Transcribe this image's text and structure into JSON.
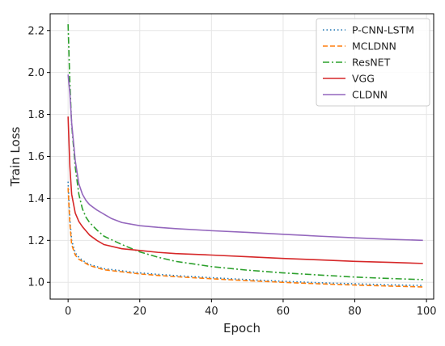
{
  "chart_data": {
    "type": "line",
    "xlabel": "Epoch",
    "ylabel": "Train Loss",
    "xlim": [
      -5,
      102
    ],
    "ylim": [
      0.92,
      2.28
    ],
    "xticks": [
      0,
      20,
      40,
      60,
      80,
      100
    ],
    "yticks": [
      1.0,
      1.2,
      1.4,
      1.6,
      1.8,
      2.0,
      2.2
    ],
    "xtick_labels": [
      "0",
      "20",
      "40",
      "60",
      "80",
      "100"
    ],
    "ytick_labels": [
      "1.0",
      "1.2",
      "1.4",
      "1.6",
      "1.8",
      "2.0",
      "2.2"
    ],
    "grid": true,
    "legend_position": "top-right",
    "series": [
      {
        "name": "P-CNN-LSTM",
        "color": "#1f77b4",
        "style": "dotted",
        "points": [
          [
            0,
            1.48
          ],
          [
            0.5,
            1.3
          ],
          [
            1,
            1.2
          ],
          [
            2,
            1.14
          ],
          [
            3,
            1.12
          ],
          [
            4,
            1.105
          ],
          [
            5,
            1.095
          ],
          [
            6,
            1.085
          ],
          [
            8,
            1.075
          ],
          [
            10,
            1.065
          ],
          [
            15,
            1.055
          ],
          [
            20,
            1.045
          ],
          [
            25,
            1.038
          ],
          [
            30,
            1.032
          ],
          [
            40,
            1.022
          ],
          [
            50,
            1.013
          ],
          [
            60,
            1.005
          ],
          [
            70,
            0.998
          ],
          [
            80,
            0.993
          ],
          [
            90,
            0.988
          ],
          [
            99,
            0.985
          ]
        ]
      },
      {
        "name": "MCLDNN",
        "color": "#ff7f0e",
        "style": "dashed",
        "points": [
          [
            0,
            1.45
          ],
          [
            0.5,
            1.28
          ],
          [
            1,
            1.18
          ],
          [
            2,
            1.13
          ],
          [
            3,
            1.11
          ],
          [
            4,
            1.1
          ],
          [
            5,
            1.09
          ],
          [
            6,
            1.08
          ],
          [
            8,
            1.07
          ],
          [
            10,
            1.06
          ],
          [
            15,
            1.05
          ],
          [
            20,
            1.04
          ],
          [
            25,
            1.033
          ],
          [
            30,
            1.027
          ],
          [
            40,
            1.017
          ],
          [
            50,
            1.008
          ],
          [
            60,
            1.0
          ],
          [
            70,
            0.993
          ],
          [
            80,
            0.987
          ],
          [
            90,
            0.982
          ],
          [
            99,
            0.978
          ]
        ]
      },
      {
        "name": "ResNET",
        "color": "#2ca02c",
        "style": "dashdot",
        "points": [
          [
            0,
            2.23
          ],
          [
            0.5,
            1.95
          ],
          [
            1,
            1.75
          ],
          [
            2,
            1.55
          ],
          [
            3,
            1.42
          ],
          [
            4,
            1.35
          ],
          [
            5,
            1.31
          ],
          [
            6,
            1.285
          ],
          [
            8,
            1.25
          ],
          [
            10,
            1.22
          ],
          [
            15,
            1.18
          ],
          [
            20,
            1.145
          ],
          [
            25,
            1.12
          ],
          [
            30,
            1.1
          ],
          [
            40,
            1.075
          ],
          [
            50,
            1.058
          ],
          [
            60,
            1.045
          ],
          [
            70,
            1.035
          ],
          [
            80,
            1.025
          ],
          [
            90,
            1.018
          ],
          [
            99,
            1.013
          ]
        ]
      },
      {
        "name": "VGG",
        "color": "#d62728",
        "style": "solid",
        "points": [
          [
            0,
            1.79
          ],
          [
            0.5,
            1.55
          ],
          [
            1,
            1.42
          ],
          [
            2,
            1.33
          ],
          [
            3,
            1.29
          ],
          [
            4,
            1.265
          ],
          [
            5,
            1.245
          ],
          [
            6,
            1.225
          ],
          [
            8,
            1.2
          ],
          [
            10,
            1.18
          ],
          [
            15,
            1.16
          ],
          [
            20,
            1.152
          ],
          [
            25,
            1.143
          ],
          [
            30,
            1.137
          ],
          [
            40,
            1.13
          ],
          [
            50,
            1.122
          ],
          [
            60,
            1.114
          ],
          [
            70,
            1.107
          ],
          [
            80,
            1.1
          ],
          [
            90,
            1.095
          ],
          [
            99,
            1.09
          ]
        ]
      },
      {
        "name": "CLDNN",
        "color": "#9467bd",
        "style": "solid",
        "points": [
          [
            0,
            1.99
          ],
          [
            0.5,
            1.9
          ],
          [
            1,
            1.76
          ],
          [
            2,
            1.58
          ],
          [
            3,
            1.47
          ],
          [
            4,
            1.42
          ],
          [
            5,
            1.39
          ],
          [
            6,
            1.37
          ],
          [
            8,
            1.345
          ],
          [
            10,
            1.325
          ],
          [
            12,
            1.305
          ],
          [
            15,
            1.285
          ],
          [
            20,
            1.27
          ],
          [
            25,
            1.262
          ],
          [
            30,
            1.256
          ],
          [
            40,
            1.246
          ],
          [
            50,
            1.238
          ],
          [
            60,
            1.229
          ],
          [
            70,
            1.22
          ],
          [
            80,
            1.212
          ],
          [
            90,
            1.205
          ],
          [
            99,
            1.2
          ]
        ]
      }
    ]
  }
}
